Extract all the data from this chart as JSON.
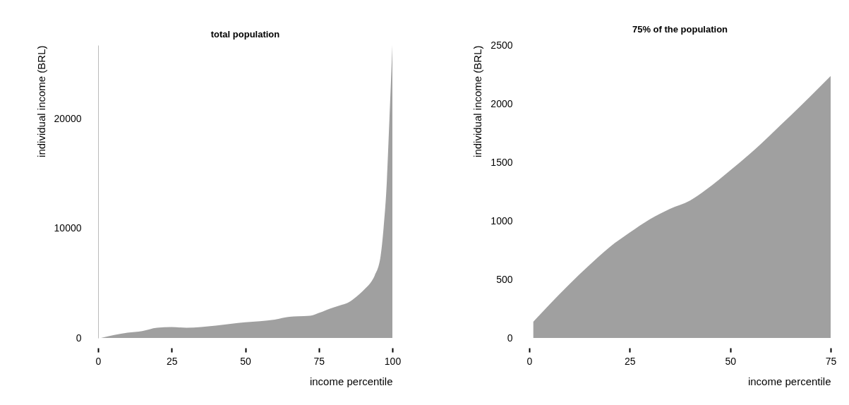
{
  "chart_data": [
    {
      "type": "area",
      "title": "total population",
      "xlabel": "income percentile",
      "ylabel": "individual income (BRL)",
      "x": [
        1,
        10,
        15,
        20,
        25,
        30,
        40,
        50,
        55,
        60,
        65,
        68,
        72,
        75,
        80,
        83,
        85,
        88,
        91,
        93,
        94,
        96,
        97,
        98,
        99,
        100
      ],
      "values": [
        0,
        480,
        630,
        930,
        1000,
        930,
        1130,
        1430,
        1530,
        1680,
        1930,
        1980,
        2030,
        2290,
        2790,
        3040,
        3240,
        3820,
        4570,
        5200,
        5700,
        7460,
        10000,
        13700,
        20000,
        26700
      ],
      "color": "#a0a0a0",
      "xlim": [
        0,
        100
      ],
      "xticks": [
        0,
        25,
        50,
        75,
        100
      ],
      "ylim": [
        0,
        26700
      ],
      "yticks": [
        0,
        10000,
        20000
      ],
      "grid": false
    },
    {
      "type": "area",
      "title": "75% of the population",
      "xlabel": "income percentile",
      "ylabel": "individual income (BRL)",
      "x": [
        1,
        5,
        10,
        15,
        20,
        25,
        30,
        35,
        40,
        44,
        50,
        55,
        60,
        65,
        70,
        75
      ],
      "values": [
        138,
        285,
        460,
        624,
        776,
        900,
        1014,
        1103,
        1173,
        1266,
        1430,
        1575,
        1734,
        1897,
        2065,
        2236
      ],
      "color": "#a0a0a0",
      "xlim": [
        0,
        75
      ],
      "xticks": [
        0,
        25,
        50,
        75
      ],
      "ylim": [
        0,
        2500
      ],
      "yticks": [
        0,
        500,
        1000,
        1500,
        2000,
        2500
      ],
      "grid": false
    }
  ]
}
